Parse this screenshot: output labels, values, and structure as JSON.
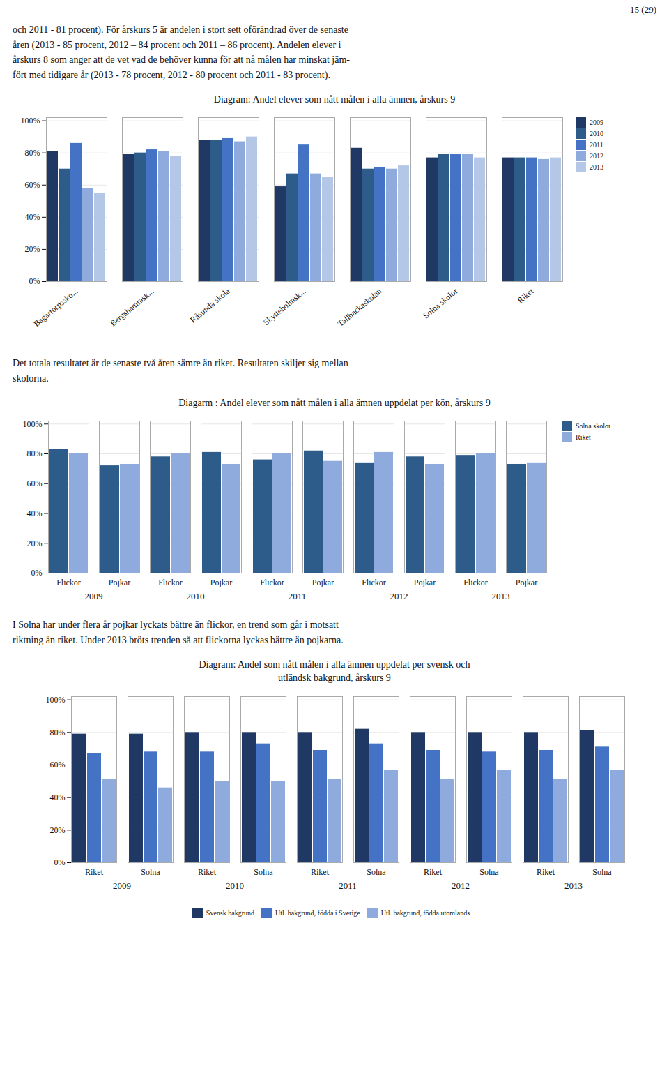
{
  "page_number": "15 (29)",
  "paragraphs": [
    "och 2011 - 81 procent). För årskurs 5 är andelen i stort sett oförändrad över de senaste\nåren (2013 - 85 procent, 2012 – 84 procent och 2011 – 86 procent). Andelen elever i\nårskurs 8 som anger att de vet vad de behöver kunna för att nå målen har minskat jäm-\nfört med tidigare år (2013 - 78 procent, 2012 - 80 procent och 2011 - 83 procent).",
    "Det totala resultatet är de senaste två åren sämre än riket. Resultaten skiljer sig mellan\nskolorna.",
    "I Solna har under flera år pojkar lyckats bättre än flickor, en trend som går i motsatt\nriktning än riket. Under 2013 bröts trenden så att flickorna lyckas bättre än pojkarna."
  ],
  "chart_data": [
    {
      "type": "bar",
      "title": "Diagram: Andel elever som nått målen i alla ämnen, årskurs 9",
      "categories": [
        "Bagartorpssko...",
        "Bergshamrask...",
        "Råsunda skola",
        "Skytteholmsk...",
        "Tallbackaskolan",
        "Solna skolor",
        "Riket"
      ],
      "series": [
        {
          "name": "2009",
          "color": "#1F3864",
          "values": [
            81,
            79,
            88,
            59,
            83,
            77,
            77
          ]
        },
        {
          "name": "2010",
          "color": "#2E5C8A",
          "values": [
            70,
            80,
            88,
            67,
            70,
            79,
            77
          ]
        },
        {
          "name": "2011",
          "color": "#4472C4",
          "values": [
            86,
            82,
            89,
            85,
            71,
            79,
            77
          ]
        },
        {
          "name": "2012",
          "color": "#8FAADC",
          "values": [
            58,
            81,
            87,
            67,
            70,
            79,
            76
          ]
        },
        {
          "name": "2013",
          "color": "#B4C7E7",
          "values": [
            55,
            78,
            90,
            65,
            72,
            77,
            77
          ]
        }
      ],
      "ylim": [
        0,
        102
      ],
      "yticks": [
        {
          "value": 0,
          "label": "0%"
        },
        {
          "value": 20,
          "label": "20%"
        },
        {
          "value": 40,
          "label": "40%"
        },
        {
          "value": 60,
          "label": "60%"
        },
        {
          "value": 80,
          "label": "80%"
        },
        {
          "value": 100,
          "label": "100%"
        }
      ],
      "grid": true,
      "legend": "right"
    },
    {
      "type": "bar",
      "title": "Diagarm : Andel elever som nått målen i alla ämnen uppdelat per kön, årskurs 9",
      "categories": [
        "Flickor",
        "Pojkar",
        "Flickor",
        "Pojkar",
        "Flickor",
        "Pojkar",
        "Flickor",
        "Pojkar",
        "Flickor",
        "Pojkar"
      ],
      "category_groups": [
        "2009",
        "2010",
        "2011",
        "2012",
        "2013"
      ],
      "series": [
        {
          "name": "Solna skolor",
          "color": "#2E5C8A",
          "values": [
            83,
            72,
            78,
            81,
            76,
            82,
            74,
            78,
            79,
            73
          ]
        },
        {
          "name": "Riket",
          "color": "#8FAADC",
          "values": [
            80,
            73,
            80,
            73,
            80,
            75,
            81,
            73,
            80,
            74
          ]
        }
      ],
      "ylim": [
        0,
        102
      ],
      "yticks": [
        {
          "value": 0,
          "label": "0%"
        },
        {
          "value": 20,
          "label": "20%"
        },
        {
          "value": 40,
          "label": "40%"
        },
        {
          "value": 60,
          "label": "60%"
        },
        {
          "value": 80,
          "label": "80%"
        },
        {
          "value": 100,
          "label": "100%"
        }
      ],
      "grid": true,
      "legend": "right"
    },
    {
      "type": "bar",
      "title": "Diagram: Andel som nått målen i alla ämnen uppdelat per svensk och\nutländsk bakgrund, årskurs 9",
      "categories": [
        "Riket",
        "Solna",
        "Riket",
        "Solna",
        "Riket",
        "Solna",
        "Riket",
        "Solna",
        "Riket",
        "Solna"
      ],
      "category_groups": [
        "2009",
        "2010",
        "2011",
        "2012",
        "2013"
      ],
      "series": [
        {
          "name": "Svensk bakgrund",
          "color": "#1F3864",
          "values": [
            79,
            79,
            80,
            80,
            80,
            82,
            80,
            80,
            80,
            81
          ]
        },
        {
          "name": "Utl. bakgrund, födda i Sverige",
          "color": "#4472C4",
          "values": [
            67,
            68,
            68,
            73,
            69,
            73,
            69,
            68,
            69,
            71
          ]
        },
        {
          "name": "Utl. bakgrund, födda utomlands",
          "color": "#8FAADC",
          "values": [
            51,
            46,
            50,
            50,
            51,
            57,
            51,
            57,
            51,
            57
          ]
        }
      ],
      "ylim": [
        0,
        102
      ],
      "yticks": [
        {
          "value": 0,
          "label": "0%"
        },
        {
          "value": 20,
          "label": "20%"
        },
        {
          "value": 40,
          "label": "40%"
        },
        {
          "value": 60,
          "label": "60%"
        },
        {
          "value": 80,
          "label": "80%"
        },
        {
          "value": 100,
          "label": "100%"
        }
      ],
      "grid": true,
      "legend": "bottom"
    }
  ]
}
